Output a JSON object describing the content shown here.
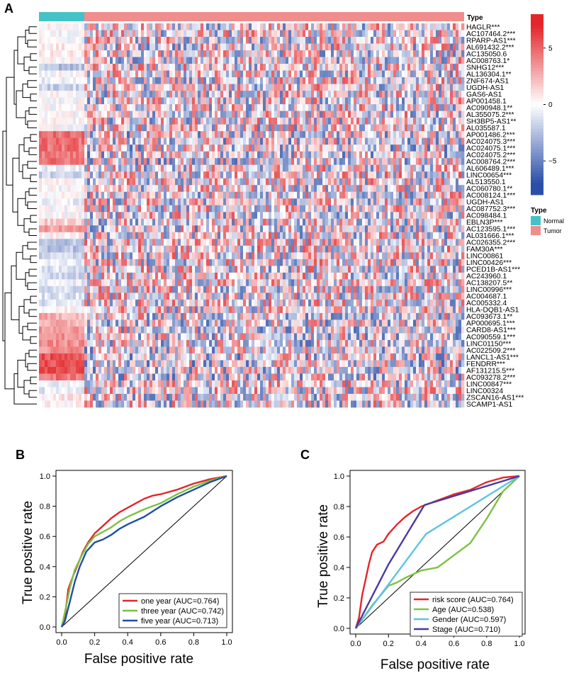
{
  "panel_labels": {
    "a": "A",
    "b": "B",
    "c": "C"
  },
  "colors": {
    "normal": "#45c2c7",
    "tumor": "#f08d8d",
    "high": "#e3262a",
    "mid": "#ffffff",
    "low": "#2b4fa8",
    "black": "#000000"
  },
  "chart_data": [
    {
      "type": "heatmap",
      "panel": "A",
      "annotation_title": "Type",
      "legend_title": "Type",
      "groups": [
        {
          "name": "Normal",
          "color": "#45c2c7",
          "fraction": 0.107
        },
        {
          "name": "Tumor",
          "color": "#f08d8d",
          "fraction": 0.893
        }
      ],
      "color_scale": {
        "min": -8,
        "max": 8,
        "ticks": [
          "5",
          "0",
          "−5"
        ],
        "tick_values": [
          5,
          0,
          -5
        ]
      },
      "rows": [
        "HAGLR***",
        "AC107464.2***",
        "RPARP-AS1***",
        "AL691432.2***",
        "AC135050.6",
        "AC008763.1*",
        "SNHG12***",
        "AL136304.1**",
        "ZNF674-AS1",
        "UGDH-AS1",
        "GAS6-AS1",
        "AP001458.1",
        "AC090948.1**",
        "AL355075.2***",
        "SH3BP5-AS1**",
        "AL035587.1",
        "AP001486.2***",
        "AC024075.3***",
        "AC024075.1***",
        "AC024075.2***",
        "AC008764.2***",
        "AL606489.1***",
        "LINC00654***",
        "AL513550.1",
        "AC060780.1**",
        "AC008124.1***",
        "UGDH-AS1",
        "AC087752.3***",
        "AC098484.1",
        "EBLN3P***",
        "AC123595.1***",
        "AL031666.1***",
        "AC026355.2***",
        "FAM30A***",
        "LINC00861",
        "LINC00426***",
        "PCED1B-AS1***",
        "AC243960.1",
        "AC138207.5**",
        "LINC00996***",
        "AC004687.1",
        "AC005332.4",
        "HLA-DQB1-AS1",
        "AC093673.1**",
        "AP000695.1***",
        "CARD8-AS1***",
        "AC090559.1***",
        "LINC01150***",
        "AC022509.2***",
        "LANCL1-AS1***",
        "FENDRR***",
        "AF131215.5***",
        "AC093278.2***",
        "LINC00847***",
        "LINC00324",
        "ZSCAN16-AS1***",
        "SCAMP1-AS1"
      ],
      "normal_means": [
        0,
        0,
        0,
        0.5,
        0.4,
        0.2,
        -2.5,
        0,
        -0.5,
        -1.8,
        0,
        0,
        0,
        0,
        0,
        0,
        4.5,
        4.5,
        4.5,
        4.5,
        4.5,
        -0.6,
        -1.6,
        0,
        0,
        0,
        -0.5,
        0,
        0,
        1.5,
        3,
        0.3,
        -2.2,
        -2.2,
        -1.5,
        -0.8,
        -1.2,
        -1.4,
        -0.6,
        -1.4,
        -1,
        -1.2,
        0.3,
        2.5,
        2.5,
        3.5,
        3.5,
        3.5,
        3.5,
        5.5,
        5.5,
        5.5,
        4.5,
        -0.4,
        -0.8,
        0.6,
        0.3
      ]
    },
    {
      "type": "line",
      "subtype": "roc",
      "panel": "B",
      "xlabel": "False positive rate",
      "ylabel": "True positive rate",
      "xlim": [
        0,
        1
      ],
      "ylim": [
        0,
        1
      ],
      "xticks": [
        "0.0",
        "0.2",
        "0.4",
        "0.6",
        "0.8",
        "1.0"
      ],
      "yticks": [
        "0.0",
        "0.2",
        "0.4",
        "0.6",
        "0.8",
        "1.0"
      ],
      "legend_position": "bottom-right",
      "series": [
        {
          "name": "one year (AUC=0.764)",
          "color": "#e3262a",
          "points": [
            [
              0,
              0
            ],
            [
              0.02,
              0.07
            ],
            [
              0.04,
              0.25
            ],
            [
              0.07,
              0.34
            ],
            [
              0.1,
              0.42
            ],
            [
              0.13,
              0.5
            ],
            [
              0.16,
              0.56
            ],
            [
              0.2,
              0.62
            ],
            [
              0.25,
              0.67
            ],
            [
              0.3,
              0.72
            ],
            [
              0.35,
              0.76
            ],
            [
              0.4,
              0.79
            ],
            [
              0.45,
              0.82
            ],
            [
              0.5,
              0.85
            ],
            [
              0.55,
              0.87
            ],
            [
              0.6,
              0.88
            ],
            [
              0.7,
              0.91
            ],
            [
              0.8,
              0.95
            ],
            [
              0.9,
              0.98
            ],
            [
              1,
              1
            ]
          ]
        },
        {
          "name": "three year (AUC=0.742)",
          "color": "#7cc242",
          "points": [
            [
              0,
              0
            ],
            [
              0.02,
              0.1
            ],
            [
              0.05,
              0.26
            ],
            [
              0.08,
              0.38
            ],
            [
              0.12,
              0.47
            ],
            [
              0.16,
              0.55
            ],
            [
              0.2,
              0.6
            ],
            [
              0.25,
              0.63
            ],
            [
              0.3,
              0.66
            ],
            [
              0.35,
              0.7
            ],
            [
              0.4,
              0.73
            ],
            [
              0.5,
              0.78
            ],
            [
              0.6,
              0.82
            ],
            [
              0.7,
              0.88
            ],
            [
              0.8,
              0.93
            ],
            [
              0.9,
              0.97
            ],
            [
              1,
              1
            ]
          ]
        },
        {
          "name": "five year (AUC=0.713)",
          "color": "#1f4fa3",
          "points": [
            [
              0,
              0
            ],
            [
              0.02,
              0.04
            ],
            [
              0.05,
              0.17
            ],
            [
              0.08,
              0.3
            ],
            [
              0.11,
              0.4
            ],
            [
              0.15,
              0.5
            ],
            [
              0.2,
              0.56
            ],
            [
              0.25,
              0.58
            ],
            [
              0.3,
              0.61
            ],
            [
              0.35,
              0.65
            ],
            [
              0.4,
              0.68
            ],
            [
              0.5,
              0.73
            ],
            [
              0.6,
              0.8
            ],
            [
              0.7,
              0.86
            ],
            [
              0.8,
              0.91
            ],
            [
              0.9,
              0.96
            ],
            [
              1,
              1
            ]
          ]
        }
      ]
    },
    {
      "type": "line",
      "subtype": "roc",
      "panel": "C",
      "xlabel": "False positive rate",
      "ylabel": "True positive rate",
      "xlim": [
        0,
        1
      ],
      "ylim": [
        0,
        1
      ],
      "xticks": [
        "0.0",
        "0.2",
        "0.4",
        "0.6",
        "0.8",
        "1.0"
      ],
      "yticks": [
        "0.0",
        "0.2",
        "0.4",
        "0.6",
        "0.8",
        "1.0"
      ],
      "legend_position": "bottom-right",
      "series": [
        {
          "name": "risk score (AUC=0.764)",
          "color": "#e3262a",
          "points": [
            [
              0,
              0
            ],
            [
              0.02,
              0.07
            ],
            [
              0.04,
              0.22
            ],
            [
              0.06,
              0.32
            ],
            [
              0.08,
              0.42
            ],
            [
              0.1,
              0.5
            ],
            [
              0.13,
              0.55
            ],
            [
              0.17,
              0.57
            ],
            [
              0.2,
              0.62
            ],
            [
              0.25,
              0.68
            ],
            [
              0.3,
              0.73
            ],
            [
              0.35,
              0.77
            ],
            [
              0.4,
              0.8
            ],
            [
              0.5,
              0.84
            ],
            [
              0.6,
              0.88
            ],
            [
              0.7,
              0.91
            ],
            [
              0.8,
              0.96
            ],
            [
              0.9,
              0.99
            ],
            [
              1,
              1
            ]
          ]
        },
        {
          "name": "Age (AUC=0.538)",
          "color": "#7cc242",
          "points": [
            [
              0,
              0
            ],
            [
              0.1,
              0.15
            ],
            [
              0.2,
              0.28
            ],
            [
              0.25,
              0.3
            ],
            [
              0.3,
              0.33
            ],
            [
              0.4,
              0.38
            ],
            [
              0.5,
              0.4
            ],
            [
              0.6,
              0.48
            ],
            [
              0.7,
              0.56
            ],
            [
              0.8,
              0.72
            ],
            [
              0.9,
              0.9
            ],
            [
              1,
              1
            ]
          ]
        },
        {
          "name": "Gender (AUC=0.597)",
          "color": "#5ec4e1",
          "points": [
            [
              0,
              0
            ],
            [
              0.43,
              0.62
            ],
            [
              1,
              1
            ]
          ]
        },
        {
          "name": "Stage (AUC=0.710)",
          "color": "#4a3aa0",
          "points": [
            [
              0,
              0
            ],
            [
              0.2,
              0.42
            ],
            [
              0.42,
              0.81
            ],
            [
              1,
              1
            ]
          ]
        }
      ]
    }
  ]
}
